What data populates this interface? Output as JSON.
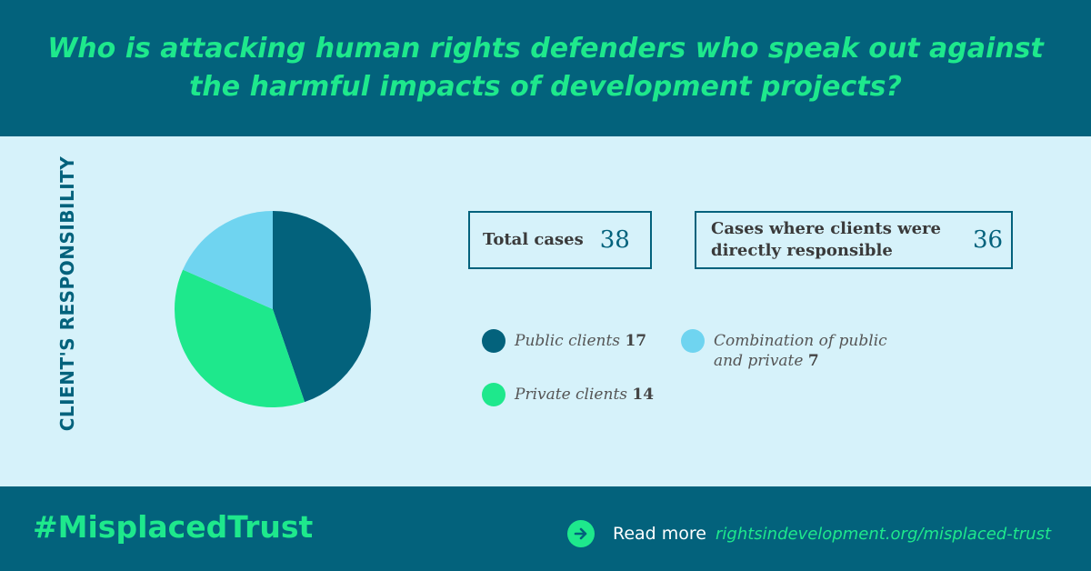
{
  "header": {
    "title": "Who is attacking human rights defenders who speak out against the harmful impacts of development projects?"
  },
  "chart_data": {
    "type": "pie",
    "title": "Who is attacking human rights defenders who speak out against the harmful impacts of development projects?",
    "ylabel": "CLIENT'S RESPONSIBILITY",
    "categories": [
      "Public clients",
      "Private clients",
      "Combination of public and private"
    ],
    "values": [
      17,
      14,
      7
    ],
    "colors": [
      "#03627c",
      "#1ee88c",
      "#6fd4f0"
    ],
    "legend_position": "right"
  },
  "stats": {
    "total_label": "Total cases",
    "total_value": "38",
    "direct_label": "Cases where clients were directly responsible",
    "direct_value": "36"
  },
  "legend": [
    {
      "label": "Public clients",
      "value": "17"
    },
    {
      "label": "Private clients",
      "value": "14"
    },
    {
      "label": "Combination of public and private",
      "value": "7"
    }
  ],
  "footer": {
    "hashtag": "#MisplacedTrust",
    "read_more": "Read more",
    "link": "rightsindevelopment.org/misplaced-trust",
    "arrow_icon": "arrow-right-icon"
  }
}
